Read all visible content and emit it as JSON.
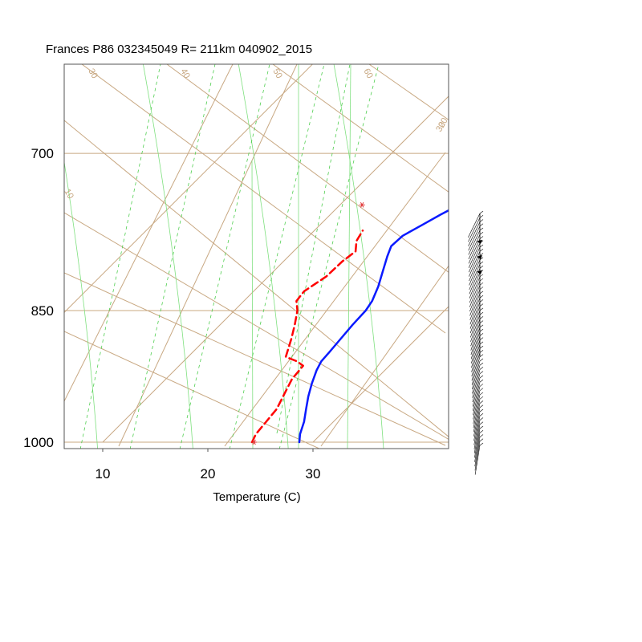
{
  "chart_data": {
    "type": "line",
    "title": "Frances P86 032345049 R= 211km 040902_2015",
    "xlabel": "Temperature (C)",
    "ylabel": "",
    "xlim": [
      6.5,
      43.5
    ],
    "plim": [
      1000,
      620
    ],
    "y_scale": "log-pressure (skew-T)",
    "x_ticks": [
      10,
      20,
      30
    ],
    "x_tick_labels": [
      "10",
      "20",
      "30"
    ],
    "p_ticks": [
      700,
      850,
      1000
    ],
    "p_tick_labels": [
      "700",
      "850",
      "1000"
    ],
    "grid": true,
    "colors": {
      "temperature": "#0a1aff",
      "dewpoint": "#ff0000",
      "isobar_isotherm": "#c8a882",
      "dry_adiabat": "#c8a882",
      "moist_adiabat": "#7fe07f",
      "mixing_ratio": "#4fce4f",
      "wind_barb": "#000000"
    },
    "isotherms_skew_x_at_1000": [
      -6,
      10,
      30,
      50,
      70
    ],
    "dry_adiabat_labels": [
      {
        "label": "30",
        "x_top": 11.5
      },
      {
        "label": "40",
        "x_top": 24.3
      },
      {
        "label": "50",
        "x_top": 38.4
      },
      {
        "label": "60",
        "x_top": 52.8
      },
      {
        "label": "20"
      },
      {
        "label": "10"
      }
    ],
    "moist_adiabat_x_at_1000": [
      3.5,
      11.5,
      19.5,
      27.5,
      35.5
    ],
    "mixing_ratio_x_at_1000": [
      12.5,
      17.5,
      21.0,
      24.5,
      27.5
    ],
    "series": [
      {
        "name": "Temperature",
        "points": [
          {
            "p": 1000,
            "t": 28.7
          },
          {
            "p": 990,
            "t": 28.0
          },
          {
            "p": 975,
            "t": 27.2
          },
          {
            "p": 960,
            "t": 26.2
          },
          {
            "p": 945,
            "t": 25.2
          },
          {
            "p": 930,
            "t": 24.3
          },
          {
            "p": 915,
            "t": 23.5
          },
          {
            "p": 905,
            "t": 23.1
          },
          {
            "p": 895,
            "t": 23.0
          },
          {
            "p": 880,
            "t": 22.8
          },
          {
            "p": 865,
            "t": 22.6
          },
          {
            "p": 850,
            "t": 22.5
          },
          {
            "p": 840,
            "t": 22.2
          },
          {
            "p": 825,
            "t": 21.4
          },
          {
            "p": 810,
            "t": 20.4
          },
          {
            "p": 795,
            "t": 19.4
          },
          {
            "p": 785,
            "t": 18.8
          },
          {
            "p": 775,
            "t": 18.9
          },
          {
            "p": 765,
            "t": 19.7
          },
          {
            "p": 755,
            "t": 20.5
          },
          {
            "p": 745,
            "t": 21.4
          }
        ]
      },
      {
        "name": "Dewpoint",
        "points": [
          {
            "p": 1000,
            "t": 24.2
          },
          {
            "p": 990,
            "t": 23.8
          },
          {
            "p": 975,
            "t": 23.6
          },
          {
            "p": 960,
            "t": 23.4
          },
          {
            "p": 940,
            "t": 22.6
          },
          {
            "p": 925,
            "t": 22.0
          },
          {
            "p": 910,
            "t": 21.8
          },
          {
            "p": 905,
            "t": 20.8
          },
          {
            "p": 900,
            "t": 19.3
          },
          {
            "p": 880,
            "t": 18.1
          },
          {
            "p": 865,
            "t": 17.1
          },
          {
            "p": 850,
            "t": 16.0
          },
          {
            "p": 840,
            "t": 15.0
          },
          {
            "p": 830,
            "t": 14.8
          },
          {
            "p": 815,
            "t": 15.5
          },
          {
            "p": 800,
            "t": 15.6
          },
          {
            "p": 790,
            "t": 15.9
          },
          {
            "p": 780,
            "t": 15.0
          },
          {
            "p": 770,
            "t": 14.6
          }
        ]
      }
    ],
    "markers": [
      {
        "name": "surface",
        "p": 1000,
        "t": 24.4
      },
      {
        "name": "lcl",
        "p": 746,
        "t": 12.1
      }
    ],
    "wind_barb_column": {
      "p_top": 745,
      "p_bottom": 1000,
      "count": 56,
      "flagged_levels": [
        785,
        800,
        815
      ]
    }
  }
}
